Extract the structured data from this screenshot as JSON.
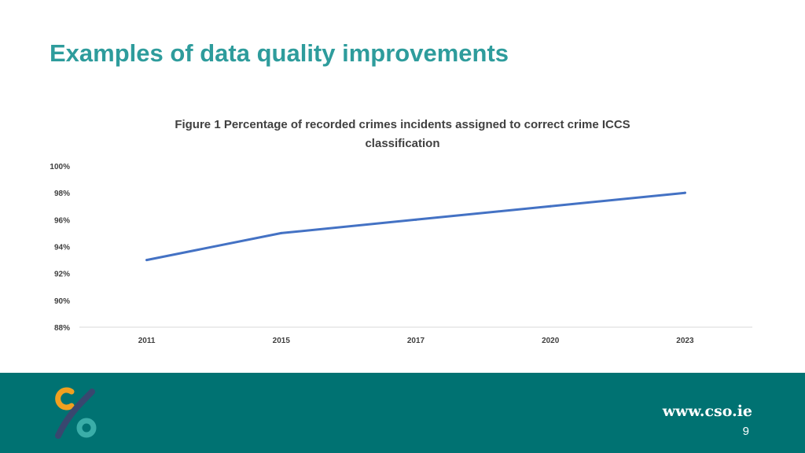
{
  "slide": {
    "title": "Examples of data quality improvements",
    "footer_url": "www.cso.ie",
    "page_number": "9"
  },
  "colors": {
    "title": "#2e9c9c",
    "footer": "#007272",
    "line": "#4472c4",
    "logo_orange": "#f0a020",
    "logo_teal": "#3aada8",
    "logo_navy": "#39476f"
  },
  "icons": [
    "cso-logo-icon"
  ],
  "chart_data": {
    "type": "line",
    "title_lines": [
      "Figure 1 Percentage of recorded crimes incidents assigned to correct crime ICCS",
      "classification"
    ],
    "categories": [
      "2011",
      "2015",
      "2017",
      "2020",
      "2023"
    ],
    "series": [
      {
        "values": [
          93,
          95,
          96,
          97,
          98
        ]
      }
    ],
    "y_ticks": [
      "100%",
      "98%",
      "96%",
      "94%",
      "92%",
      "90%",
      "88%"
    ],
    "ylim": [
      88,
      100
    ],
    "xlabel": "",
    "ylabel": "",
    "grid": false,
    "legend": "none"
  }
}
